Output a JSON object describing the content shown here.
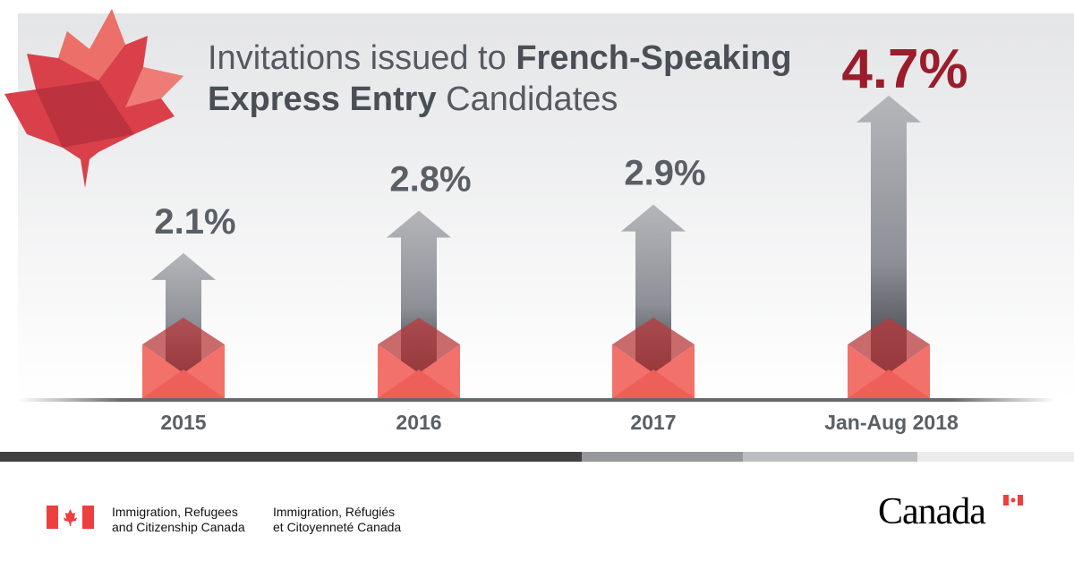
{
  "title": {
    "part1": "Invitations issued to ",
    "part2": "French-Speaking",
    "part3": "Express Entry",
    "part4": " Candidates"
  },
  "colors": {
    "highlight": "#9b1c2a",
    "value_text": "#5a5f66",
    "envelope": "#f2716b",
    "envelope_flap": "#b8393c",
    "leaf": "#d9404a"
  },
  "chart_data": {
    "type": "bar",
    "title": "Invitations issued to French-Speaking Express Entry Candidates",
    "categories": [
      "2015",
      "2016",
      "2017",
      "Jan-Aug 2018"
    ],
    "values": [
      2.1,
      2.8,
      2.9,
      4.7
    ],
    "value_labels": [
      "2.1%",
      "2.8%",
      "2.9%",
      "4.7%"
    ],
    "unit": "%",
    "highlight_index": 3,
    "mark": "arrow"
  },
  "footer": {
    "dept_en_1": "Immigration, Refugees",
    "dept_en_2": "and Citizenship Canada",
    "dept_fr_1": "Immigration, Réfugiés",
    "dept_fr_2": "et Citoyenneté Canada",
    "wordmark": "Canada"
  }
}
